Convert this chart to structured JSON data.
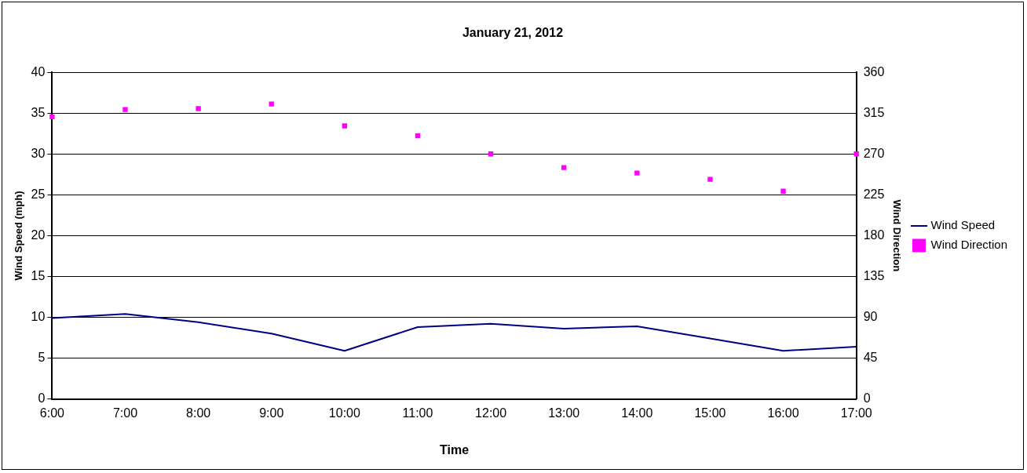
{
  "chart_data": {
    "type": "line",
    "title": "January 21, 2012",
    "xlabel": "Time",
    "ylabel": "Wind Speed (mph)",
    "y2label": "Wind Direction",
    "categories": [
      "6:00",
      "7:00",
      "8:00",
      "9:00",
      "10:00",
      "11:00",
      "12:00",
      "13:00",
      "14:00",
      "15:00",
      "16:00",
      "17:00"
    ],
    "series": [
      {
        "name": "Wind Speed",
        "type": "line",
        "color": "#000080",
        "marker": "none",
        "line_style": "solid",
        "values": [
          9.9,
          10.4,
          9.4,
          8.0,
          5.9,
          8.8,
          9.2,
          8.6,
          8.9,
          7.4,
          5.9,
          6.4
        ]
      },
      {
        "name": "Wind Direction",
        "type": "scatter",
        "axis": "y2",
        "color": "#ff00ff",
        "marker": "square",
        "values": [
          311,
          319,
          320,
          325,
          301,
          290,
          270,
          255,
          249,
          242,
          229,
          270
        ]
      }
    ],
    "ylim": [
      0,
      40
    ],
    "yticks": [
      0,
      5,
      10,
      15,
      20,
      25,
      30,
      35,
      40
    ],
    "y2lim": [
      0,
      360
    ],
    "y2ticks": [
      0,
      45,
      90,
      135,
      180,
      225,
      270,
      315,
      360
    ],
    "grid": "y",
    "legend": "right"
  }
}
